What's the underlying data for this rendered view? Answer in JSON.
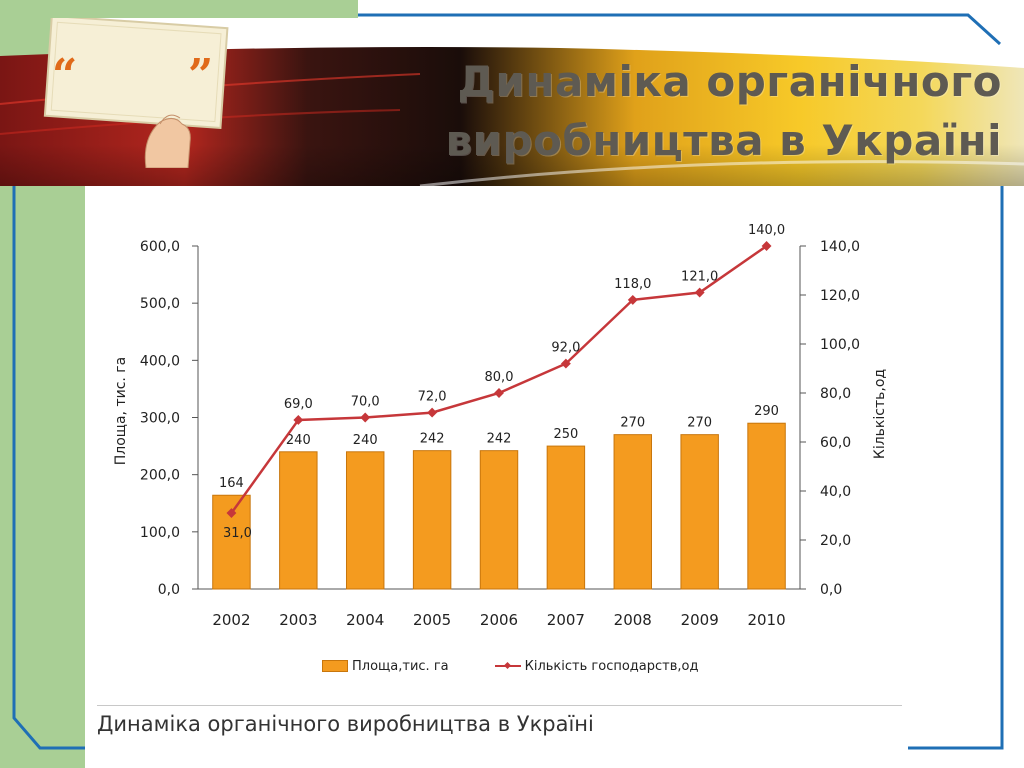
{
  "slide": {
    "title_line_1": "Динаміка органічного",
    "title_line_2": "виробництва в Україні",
    "caption": "Динаміка органічного виробництва в Україні",
    "colors": {
      "green": "#a9cf95",
      "frame_blue": "#1f6fb5",
      "bar": "#f49b1f",
      "line": "#c6373a",
      "quote_mark": "#e06a1a"
    },
    "icons": [
      "quote-open-icon",
      "quote-close-icon",
      "hand-holding-card-icon"
    ]
  },
  "chart_data": {
    "type": "bar",
    "categories": [
      "2002",
      "2003",
      "2004",
      "2005",
      "2006",
      "2007",
      "2008",
      "2009",
      "2010"
    ],
    "series": [
      {
        "name": "Площа,тис. га",
        "type": "bar",
        "axis": "left",
        "values": [
          164,
          240,
          240,
          242,
          242,
          250,
          270,
          270,
          290
        ],
        "labels": [
          "164",
          "240",
          "240",
          "242",
          "242",
          "250",
          "270",
          "270",
          "290"
        ]
      },
      {
        "name": "Кількість господарств,од",
        "type": "line",
        "axis": "right",
        "values": [
          31.0,
          69.0,
          70.0,
          72.0,
          80.0,
          92.0,
          118.0,
          121.0,
          140.0
        ],
        "labels": [
          "31,0",
          "69,0",
          "70,0",
          "72,0",
          "80,0",
          "92,0",
          "118,0",
          "121,0",
          "140,0"
        ]
      }
    ],
    "y_left": {
      "label": "Площа, тис. га",
      "range": [
        0,
        600
      ],
      "ticks": [
        "0,0",
        "100,0",
        "200,0",
        "300,0",
        "400,0",
        "500,0",
        "600,0"
      ],
      "tick_values": [
        0,
        100,
        200,
        300,
        400,
        500,
        600
      ]
    },
    "y_right": {
      "label": "Кількість,од",
      "range": [
        0,
        140
      ],
      "ticks": [
        "0,0",
        "20,0",
        "40,0",
        "60,0",
        "80,0",
        "100,0",
        "120,0",
        "140,0"
      ],
      "tick_values": [
        0,
        20,
        40,
        60,
        80,
        100,
        120,
        140
      ]
    },
    "grid": false,
    "legend_position": "bottom"
  }
}
